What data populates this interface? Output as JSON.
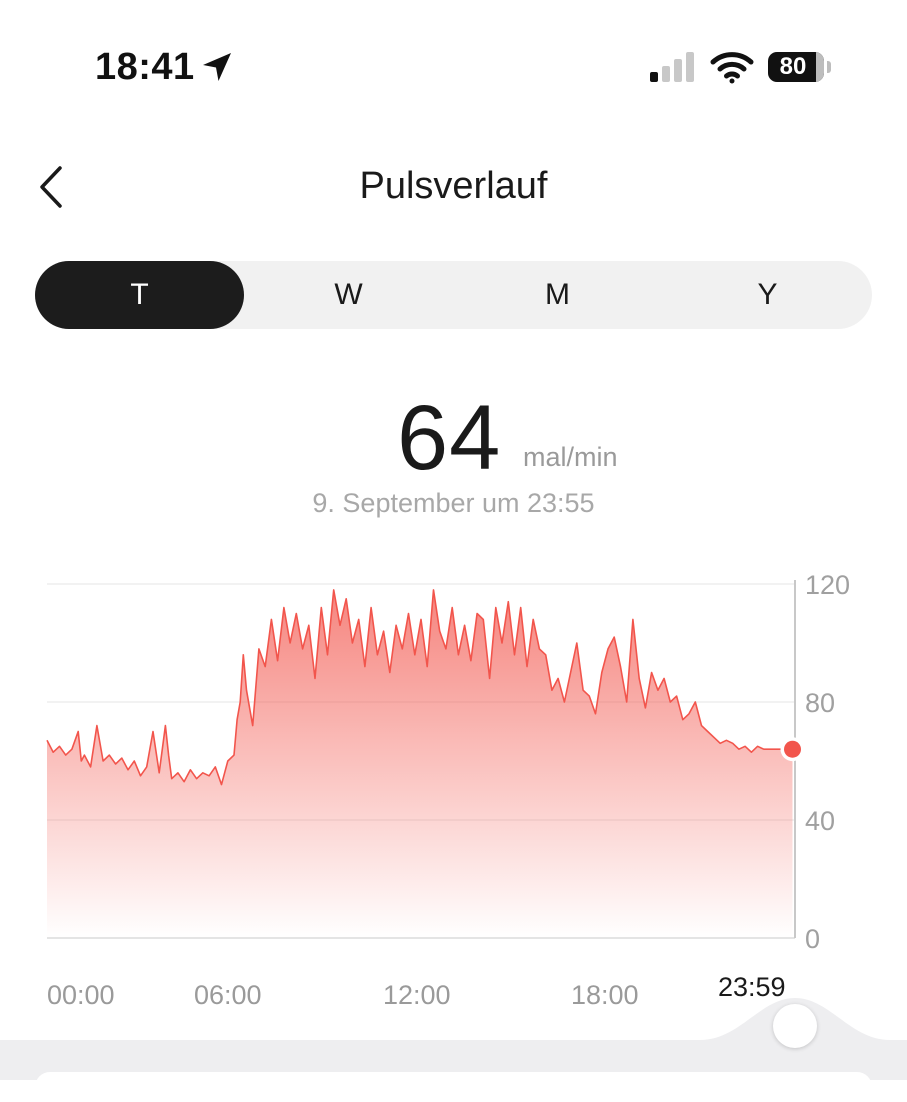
{
  "status_bar": {
    "time": "18:41",
    "battery_level": "80",
    "location_icon": "location-arrow-icon",
    "signal_icon": "cellular-signal-icon",
    "wifi_icon": "wifi-icon"
  },
  "nav": {
    "back_icon": "chevron-left-icon",
    "title": "Pulsverlauf"
  },
  "segments": [
    {
      "label": "T",
      "active": true
    },
    {
      "label": "W",
      "active": false
    },
    {
      "label": "M",
      "active": false
    },
    {
      "label": "Y",
      "active": false
    }
  ],
  "summary": {
    "value": "64",
    "unit": "mal/min",
    "timestamp": "9. September um 23:55"
  },
  "colors": {
    "accent": "#f2554c",
    "segment_active": "#1c1c1c"
  },
  "chart_data": {
    "type": "area",
    "x_unit": "hours",
    "x_ticks": [
      "00:00",
      "06:00",
      "12:00",
      "18:00"
    ],
    "selected_x_label": "23:59",
    "y_ticks": [
      "0",
      "40",
      "80",
      "120"
    ],
    "ylim": [
      0,
      120
    ],
    "xlim": [
      0,
      24
    ],
    "y_axis_side": "right",
    "grid": true,
    "series": [
      {
        "x": [
          0,
          0.2,
          0.4,
          0.6,
          0.8,
          1.0,
          1.1,
          1.2,
          1.4,
          1.6,
          1.8,
          2.0,
          2.2,
          2.4,
          2.6,
          2.8,
          3.0,
          3.2,
          3.4,
          3.6,
          3.8,
          3.9,
          4.0,
          4.2,
          4.4,
          4.6,
          4.8,
          5.0,
          5.2,
          5.4,
          5.6,
          5.8,
          6.0,
          6.1,
          6.2,
          6.3,
          6.4,
          6.6,
          6.8,
          7.0,
          7.2,
          7.4,
          7.6,
          7.8,
          8.0,
          8.2,
          8.4,
          8.6,
          8.8,
          9.0,
          9.2,
          9.4,
          9.6,
          9.8,
          10.0,
          10.2,
          10.4,
          10.6,
          10.8,
          11.0,
          11.2,
          11.4,
          11.6,
          11.8,
          12.0,
          12.2,
          12.4,
          12.6,
          12.8,
          13.0,
          13.2,
          13.4,
          13.6,
          13.8,
          14.0,
          14.2,
          14.4,
          14.6,
          14.8,
          15.0,
          15.2,
          15.4,
          15.6,
          15.8,
          16.0,
          16.2,
          16.4,
          16.6,
          16.8,
          17.0,
          17.2,
          17.4,
          17.6,
          17.8,
          18.0,
          18.2,
          18.4,
          18.6,
          18.8,
          19.0,
          19.2,
          19.4,
          19.6,
          19.8,
          20.0,
          20.2,
          20.4,
          20.6,
          20.8,
          21.0,
          21.2,
          21.4,
          21.6,
          21.8,
          22.0,
          22.2,
          22.4,
          22.6,
          22.8,
          23.0,
          23.2,
          23.4,
          23.6,
          23.8,
          23.92
        ],
        "y": [
          67,
          63,
          65,
          62,
          64,
          70,
          60,
          62,
          58,
          72,
          60,
          62,
          59,
          61,
          57,
          60,
          55,
          58,
          70,
          56,
          72,
          62,
          54,
          56,
          53,
          57,
          54,
          56,
          55,
          58,
          52,
          60,
          62,
          74,
          80,
          96,
          84,
          72,
          98,
          92,
          108,
          94,
          112,
          100,
          110,
          98,
          106,
          88,
          112,
          96,
          118,
          106,
          115,
          100,
          108,
          92,
          112,
          96,
          104,
          90,
          106,
          98,
          110,
          96,
          108,
          92,
          118,
          104,
          98,
          112,
          96,
          106,
          94,
          110,
          108,
          88,
          112,
          100,
          114,
          96,
          112,
          92,
          108,
          98,
          96,
          84,
          88,
          80,
          90,
          100,
          84,
          82,
          76,
          90,
          98,
          102,
          92,
          80,
          108,
          88,
          78,
          90,
          84,
          88,
          80,
          82,
          74,
          76,
          80,
          72,
          70,
          68,
          66,
          67,
          66,
          64,
          65,
          63,
          65,
          64,
          64,
          64,
          64,
          64,
          64
        ],
        "selected_point": {
          "x": 23.92,
          "y": 64
        }
      }
    ]
  }
}
